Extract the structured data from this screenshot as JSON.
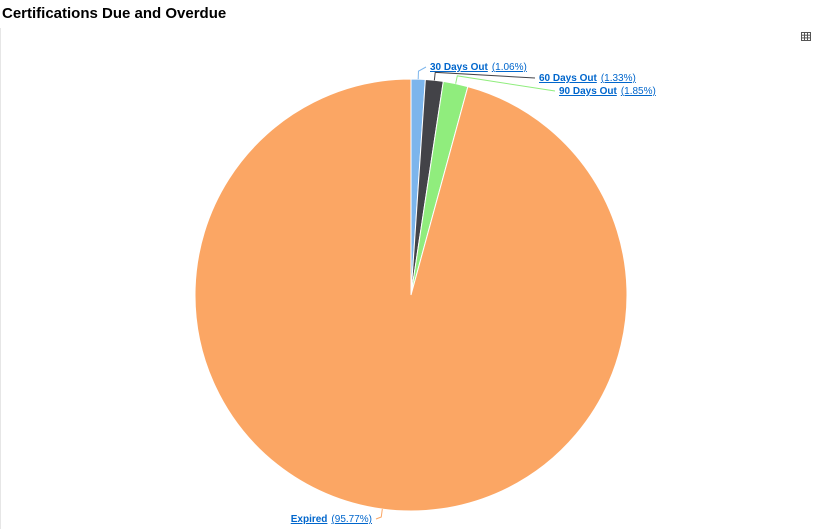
{
  "chart_data": {
    "type": "pie",
    "title": "Certifications Due and Overdue",
    "categories": [
      "30 Days Out",
      "60 Days Out",
      "90 Days Out",
      "Expired"
    ],
    "values": [
      1.06,
      1.33,
      1.85,
      95.77
    ],
    "value_labels": [
      "(1.06%)",
      "(1.33%)",
      "(1.85%)",
      "(95.77%)"
    ],
    "colors": [
      "#7cb5ec",
      "#434348",
      "#90ed7d",
      "#fba664"
    ]
  }
}
